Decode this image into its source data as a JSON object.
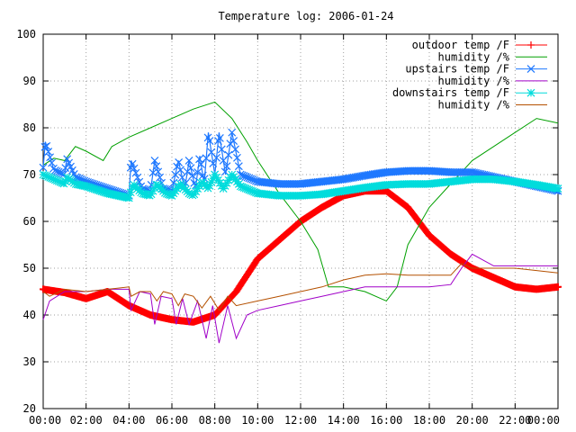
{
  "chart_data": {
    "type": "line",
    "title": "Temperature log: 2006-01-24",
    "xlabel": "",
    "ylabel": "",
    "ylim": [
      20,
      100
    ],
    "xlim": [
      0,
      24
    ],
    "grid": true,
    "legend_position": "top-right",
    "x_ticks": [
      "00:00",
      "02:00",
      "04:00",
      "06:00",
      "08:00",
      "10:00",
      "12:00",
      "14:00",
      "16:00",
      "18:00",
      "20:00",
      "22:00",
      "00:00"
    ],
    "y_ticks": [
      "20",
      "30",
      "40",
      "50",
      "60",
      "70",
      "80",
      "90",
      "100"
    ],
    "series": [
      {
        "name": "outdoor temp /F",
        "color": "#ff0000",
        "marker": "plus",
        "points": [
          [
            0,
            45.5
          ],
          [
            1,
            44.8
          ],
          [
            2,
            43.5
          ],
          [
            3,
            45
          ],
          [
            4,
            42
          ],
          [
            5,
            40
          ],
          [
            6,
            39
          ],
          [
            7,
            38.5
          ],
          [
            8,
            40
          ],
          [
            9,
            45
          ],
          [
            10,
            52
          ],
          [
            11,
            56
          ],
          [
            12,
            60
          ],
          [
            13,
            63
          ],
          [
            14,
            65.5
          ],
          [
            15,
            66.5
          ],
          [
            16,
            66.5
          ],
          [
            17,
            63
          ],
          [
            18,
            57
          ],
          [
            19,
            53
          ],
          [
            20,
            50
          ],
          [
            21,
            48
          ],
          [
            22,
            46
          ],
          [
            23,
            45.5
          ],
          [
            24,
            46
          ]
        ]
      },
      {
        "name": "humidity /%",
        "color": "#00a000",
        "marker": "none",
        "points": [
          [
            0,
            72
          ],
          [
            0.5,
            73.5
          ],
          [
            1,
            73
          ],
          [
            1.5,
            76
          ],
          [
            2,
            75
          ],
          [
            2.8,
            73
          ],
          [
            3.2,
            76
          ],
          [
            4,
            78
          ],
          [
            5,
            80
          ],
          [
            6,
            82
          ],
          [
            7,
            84
          ],
          [
            8,
            85.5
          ],
          [
            8.8,
            82
          ],
          [
            9.5,
            77
          ],
          [
            10,
            73
          ],
          [
            11,
            66
          ],
          [
            12,
            60
          ],
          [
            12.8,
            54
          ],
          [
            13.3,
            46
          ],
          [
            14,
            46
          ],
          [
            15,
            45
          ],
          [
            16,
            43
          ],
          [
            16.5,
            46
          ],
          [
            17,
            55
          ],
          [
            18,
            63
          ],
          [
            19,
            68
          ],
          [
            20,
            73
          ],
          [
            21,
            76
          ],
          [
            22,
            79
          ],
          [
            23,
            82
          ],
          [
            24,
            81
          ]
        ]
      },
      {
        "name": "upstairs temp /F",
        "color": "#1e78ff",
        "marker": "x",
        "points": [
          [
            0,
            71.5
          ],
          [
            0.1,
            77
          ],
          [
            0.5,
            71
          ],
          [
            1,
            70
          ],
          [
            1.1,
            73.5
          ],
          [
            1.5,
            69.5
          ],
          [
            2,
            68.5
          ],
          [
            3,
            67
          ],
          [
            4,
            65.5
          ],
          [
            4.1,
            73
          ],
          [
            4.6,
            67
          ],
          [
            5,
            66.5
          ],
          [
            5.2,
            73
          ],
          [
            5.6,
            67
          ],
          [
            6,
            66.5
          ],
          [
            6.3,
            73
          ],
          [
            6.6,
            67
          ],
          [
            6.8,
            73
          ],
          [
            7.1,
            67
          ],
          [
            7.3,
            74
          ],
          [
            7.5,
            68
          ],
          [
            7.7,
            79
          ],
          [
            8,
            70
          ],
          [
            8.2,
            79
          ],
          [
            8.5,
            70
          ],
          [
            8.8,
            79
          ],
          [
            9.2,
            70
          ],
          [
            10,
            68.5
          ],
          [
            11,
            68
          ],
          [
            12,
            68
          ],
          [
            13,
            68.5
          ],
          [
            14,
            69
          ],
          [
            15,
            69.8
          ],
          [
            16,
            70.5
          ],
          [
            17,
            70.8
          ],
          [
            18,
            70.8
          ],
          [
            19,
            70.5
          ],
          [
            20,
            70.5
          ],
          [
            21,
            69.5
          ],
          [
            22,
            68.5
          ],
          [
            23,
            67.5
          ],
          [
            24,
            66.5
          ]
        ]
      },
      {
        "name": "humidity /%",
        "color": "#a000c8",
        "marker": "none",
        "points": [
          [
            0,
            39
          ],
          [
            0.3,
            43
          ],
          [
            1,
            45
          ],
          [
            2,
            45
          ],
          [
            3,
            45.5
          ],
          [
            4,
            45.5
          ],
          [
            4.1,
            41
          ],
          [
            4.5,
            45
          ],
          [
            5,
            44.5
          ],
          [
            5.2,
            38
          ],
          [
            5.5,
            44
          ],
          [
            6,
            43.5
          ],
          [
            6.2,
            38
          ],
          [
            6.5,
            43.5
          ],
          [
            6.8,
            38
          ],
          [
            7.2,
            43
          ],
          [
            7.6,
            35
          ],
          [
            7.9,
            42
          ],
          [
            8.2,
            34
          ],
          [
            8.6,
            42
          ],
          [
            9,
            35
          ],
          [
            9.5,
            40
          ],
          [
            10,
            41
          ],
          [
            11,
            42
          ],
          [
            12,
            43
          ],
          [
            13,
            44
          ],
          [
            14,
            45
          ],
          [
            15,
            46
          ],
          [
            16,
            46
          ],
          [
            17,
            46
          ],
          [
            18,
            46
          ],
          [
            19,
            46.5
          ],
          [
            19.5,
            50
          ],
          [
            20,
            53
          ],
          [
            21,
            50.5
          ],
          [
            22,
            50.5
          ],
          [
            23,
            50.5
          ],
          [
            24,
            50.5
          ]
        ]
      },
      {
        "name": "downstairs temp /F",
        "color": "#00dcdc",
        "marker": "star",
        "points": [
          [
            0,
            70
          ],
          [
            0.5,
            69
          ],
          [
            1,
            68
          ],
          [
            1.1,
            69.5
          ],
          [
            1.5,
            68
          ],
          [
            2,
            67.5
          ],
          [
            3,
            66
          ],
          [
            4,
            65
          ],
          [
            4.2,
            68
          ],
          [
            4.6,
            66
          ],
          [
            5,
            65.5
          ],
          [
            5.3,
            68
          ],
          [
            5.7,
            66
          ],
          [
            6,
            65.5
          ],
          [
            6.4,
            68
          ],
          [
            6.8,
            66
          ],
          [
            7,
            65.5
          ],
          [
            7.4,
            68.5
          ],
          [
            7.7,
            67
          ],
          [
            8,
            70
          ],
          [
            8.4,
            67
          ],
          [
            8.8,
            70
          ],
          [
            9.2,
            67.5
          ],
          [
            10,
            66
          ],
          [
            11,
            65.5
          ],
          [
            12,
            65.5
          ],
          [
            13,
            65.8
          ],
          [
            14,
            66.5
          ],
          [
            15,
            67.2
          ],
          [
            16,
            67.8
          ],
          [
            17,
            68
          ],
          [
            18,
            68
          ],
          [
            19,
            68.5
          ],
          [
            20,
            69
          ],
          [
            21,
            69
          ],
          [
            22,
            68.5
          ],
          [
            23,
            67.8
          ],
          [
            24,
            67
          ]
        ]
      },
      {
        "name": "humidity /%",
        "color": "#b45000",
        "marker": "none",
        "points": [
          [
            0,
            45
          ],
          [
            0.3,
            44
          ],
          [
            1,
            45.5
          ],
          [
            2,
            45
          ],
          [
            3,
            45.5
          ],
          [
            4,
            46
          ],
          [
            4.1,
            44
          ],
          [
            4.5,
            45
          ],
          [
            5,
            45
          ],
          [
            5.3,
            43
          ],
          [
            5.6,
            45
          ],
          [
            6,
            44.5
          ],
          [
            6.3,
            42
          ],
          [
            6.6,
            44.5
          ],
          [
            7,
            44
          ],
          [
            7.4,
            41.5
          ],
          [
            7.8,
            44
          ],
          [
            8.2,
            41
          ],
          [
            8.6,
            44
          ],
          [
            9,
            42
          ],
          [
            10,
            43
          ],
          [
            11,
            44
          ],
          [
            12,
            45
          ],
          [
            13,
            46
          ],
          [
            14,
            47.5
          ],
          [
            15,
            48.5
          ],
          [
            16,
            48.8
          ],
          [
            17,
            48.5
          ],
          [
            18,
            48.5
          ],
          [
            19,
            48.5
          ],
          [
            19.5,
            51
          ],
          [
            20,
            50
          ],
          [
            21,
            50
          ],
          [
            22,
            50
          ],
          [
            23,
            49.5
          ],
          [
            24,
            49
          ]
        ]
      }
    ]
  }
}
